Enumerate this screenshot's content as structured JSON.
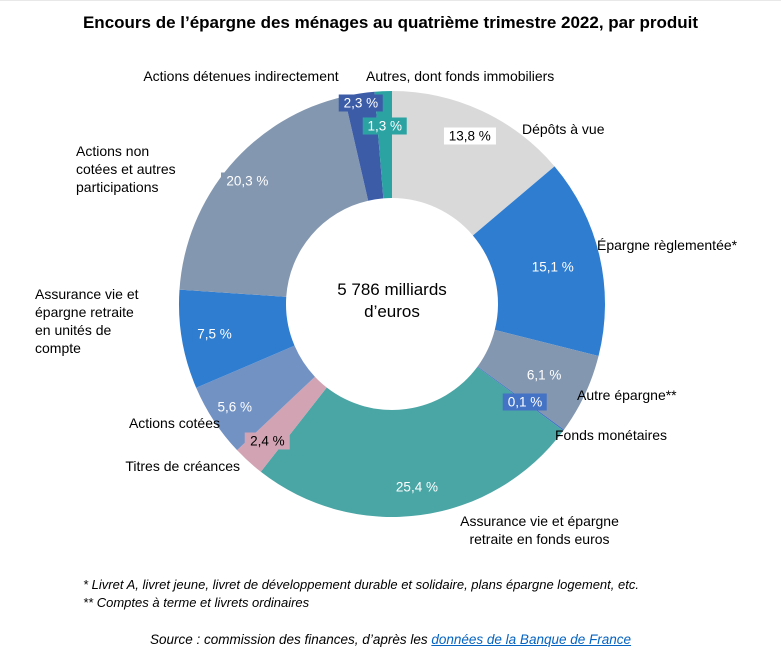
{
  "title": "Encours de l’épargne des ménages au quatrième trimestre 2022, par produit",
  "chart_data": {
    "type": "pie",
    "subtype": "donut",
    "title": "Encours de l’épargne des ménages au quatrième trimestre 2022, par produit",
    "unit": "%",
    "center_label": {
      "line1": "5 786 milliards",
      "line2": "d’euros"
    },
    "total_label": "5 786 milliards d’euros",
    "start_angle": "top, clockwise",
    "segments": [
      {
        "label": "Dépôts à vue",
        "value": 13.8,
        "pct_label": "13,8 %",
        "color": "#d9d9d9",
        "label_bg": "#ffffff",
        "label_color": "#000000",
        "label_r": 185
      },
      {
        "label": "Épargne règlementée*",
        "value": 15.1,
        "pct_label": "15,1 %",
        "color": "#2e7dd1",
        "label_bg": "#2e7dd1",
        "label_color": "#ffffff",
        "label_r": 165
      },
      {
        "label": "Autre épargne**",
        "value": 6.1,
        "pct_label": "6,1 %",
        "color": "#8497b0",
        "label_bg": "#8497b0",
        "label_color": "#ffffff",
        "label_r": 168
      },
      {
        "label": "Fonds monétaires",
        "value": 0.1,
        "pct_label": "0,1 %",
        "color": "#4472c4",
        "label_bg": "#4472c4",
        "label_color": "#ffffff",
        "label_r": 165
      },
      {
        "label": "Assurance vie et épargne retraite en fonds euros",
        "value": 25.4,
        "pct_label": "25,4 %",
        "color": "#4aa5a5",
        "label_bg": "#4aa5a5",
        "label_color": "#ffffff",
        "label_r": 185
      },
      {
        "label": "Titres de créances",
        "value": 2.4,
        "pct_label": "2,4 %",
        "color": "#d2a3b2",
        "label_bg": "#d2a3b2",
        "label_color": "#000000",
        "label_r": 185
      },
      {
        "label": "Actions cotées",
        "value": 5.6,
        "pct_label": "5,6 %",
        "color": "#7292c4",
        "label_bg": "#7292c4",
        "label_color": "#ffffff",
        "label_r": 188
      },
      {
        "label": "Assurance vie et épargne retraite en unités de compte",
        "value": 7.5,
        "pct_label": "7,5 %",
        "color": "#2e7dd1",
        "label_bg": "#2e7dd1",
        "label_color": "#ffffff",
        "label_r": 180
      },
      {
        "label": "Actions non cotées et autres participations",
        "value": 20.3,
        "pct_label": "20,3 %",
        "color": "#8497b0",
        "label_bg": "#8497b0",
        "label_color": "#ffffff",
        "label_r": 190
      },
      {
        "label": "Actions détenues indirectement",
        "value": 2.3,
        "pct_label": "2,3 %",
        "color": "#3c5ca8",
        "label_bg": "#3c5ca8",
        "label_color": "#ffffff",
        "label_r": 203
      },
      {
        "label": "Autres, dont fonds immobiliers",
        "value": 1.3,
        "pct_label": "1,3 %",
        "color": "#2ba3a3",
        "label_bg": "#2ba3a3",
        "label_color": "#ffffff",
        "label_r": 178
      }
    ]
  },
  "footnotes": [
    "* Livret A, livret jeune, livret de développement durable et solidaire, plans épargne logement, etc.",
    "** Comptes à terme et livrets ordinaires"
  ],
  "source": {
    "prefix": "Source : commission des finances, d’après les ",
    "link": "données de la Banque de France"
  }
}
